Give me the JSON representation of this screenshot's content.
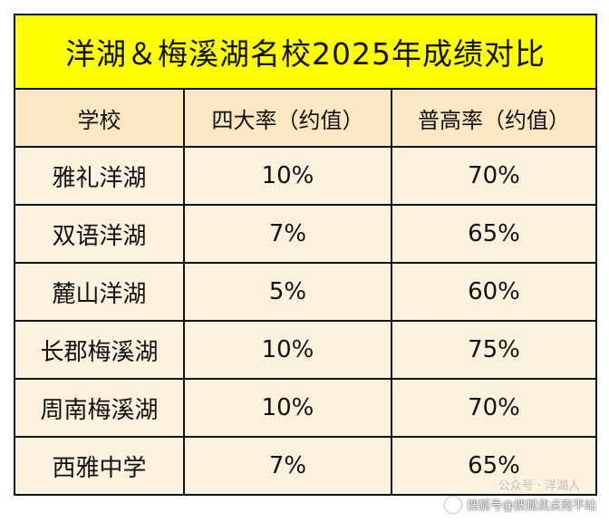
{
  "table": {
    "title": "洋湖＆梅溪湖名校2025年成绩对比",
    "headers": [
      "学校",
      "四大率（约值）",
      "普高率（约值）"
    ],
    "rows": [
      [
        "雅礼洋湖",
        "10%",
        "70%"
      ],
      [
        "双语洋湖",
        "7%",
        "65%"
      ],
      [
        "麓山洋湖",
        "5%",
        "60%"
      ],
      [
        "长郡梅溪湖",
        "10%",
        "75%"
      ],
      [
        "周南梅溪湖",
        "10%",
        "70%"
      ],
      [
        "西雅中学",
        "7%",
        "65%"
      ]
    ],
    "colors": {
      "title_bg": "#ffff00",
      "header_bg": "#fbe7c1",
      "body_bg": "#fcf1dc",
      "border": "#111111"
    }
  },
  "watermark": {
    "faint_text": "公众号 · 洋湖人",
    "text": "搜狐号@搜狐焦点南平站",
    "icon": "sohu-icon"
  }
}
